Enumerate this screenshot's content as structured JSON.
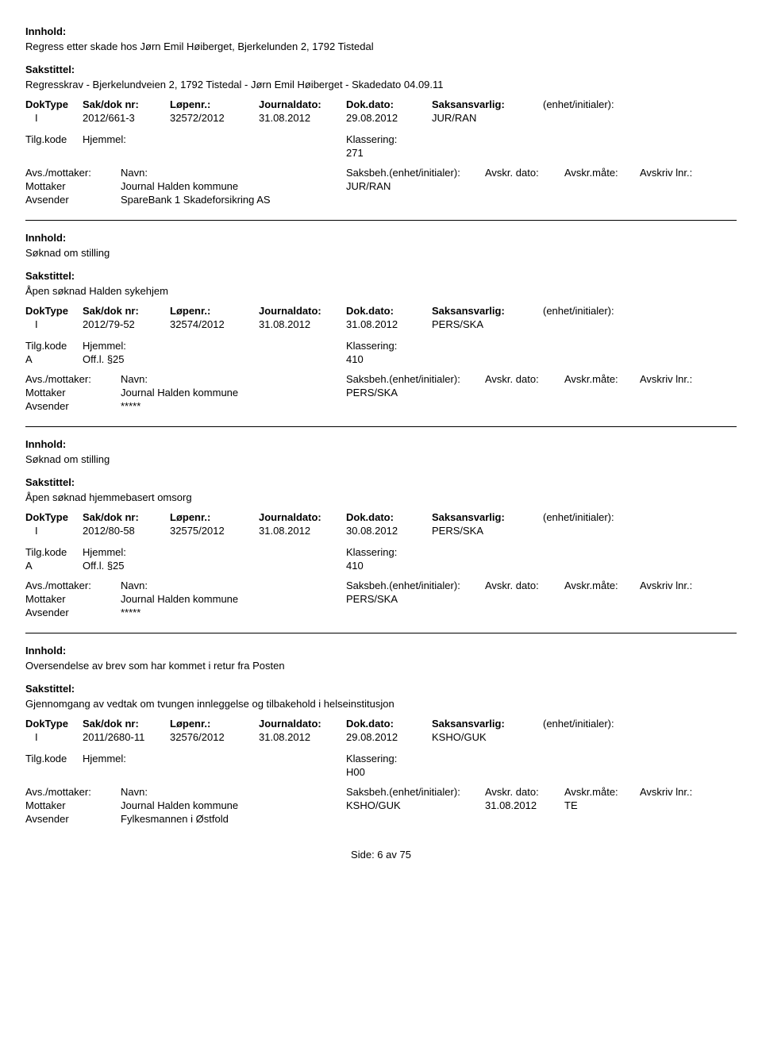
{
  "labels": {
    "innhold": "Innhold:",
    "sakstittel": "Sakstittel:",
    "doktype": "DokType",
    "sakdok": "Sak/dok nr:",
    "lopenr": "Løpenr.:",
    "jdato": "Journaldato:",
    "ddato": "Dok.dato:",
    "saksansv": "Saksansvarlig:",
    "enhet": "(enhet/initialer):",
    "tilgkode": "Tilg.kode",
    "hjemmel": "Hjemmel:",
    "klass": "Klassering:",
    "avsmot": "Avs./mottaker:",
    "navn": "Navn:",
    "saksbeh": "Saksbeh.(enhet/initialer):",
    "avskrdato": "Avskr. dato:",
    "avskrmate": "Avskr.måte:",
    "avskrlnr": "Avskriv lnr.:",
    "mottaker": "Mottaker",
    "avsender": "Avsender"
  },
  "records": [
    {
      "innhold": "Regress etter skade hos Jørn Emil Høiberget, Bjerkelunden 2, 1792 Tistedal",
      "sakstittel": "Regresskrav - Bjerkelundveien 2, 1792 Tistedal - Jørn Emil Høiberget - Skadedato 04.09.11",
      "doktype": "I",
      "sakdok": "2012/661-3",
      "lopenr": "32572/2012",
      "jdato": "31.08.2012",
      "ddato": "29.08.2012",
      "saksansv": "JUR/RAN",
      "tilgkode": "",
      "hjemmel": "",
      "klass": "271",
      "parties": [
        {
          "role": "Mottaker",
          "name": "Journal Halden kommune",
          "saksbeh": "JUR/RAN",
          "date": "",
          "mate": ""
        },
        {
          "role": "Avsender",
          "name": "SpareBank 1 Skadeforsikring AS",
          "saksbeh": "",
          "date": "",
          "mate": ""
        }
      ]
    },
    {
      "innhold": "Søknad om stilling",
      "sakstittel": "Åpen søknad Halden sykehjem",
      "doktype": "I",
      "sakdok": "2012/79-52",
      "lopenr": "32574/2012",
      "jdato": "31.08.2012",
      "ddato": "31.08.2012",
      "saksansv": "PERS/SKA",
      "tilgkode": "A",
      "hjemmel": "Off.l. §25",
      "klass": "410",
      "parties": [
        {
          "role": "Mottaker",
          "name": "Journal Halden kommune",
          "saksbeh": "PERS/SKA",
          "date": "",
          "mate": ""
        },
        {
          "role": "Avsender",
          "name": "*****",
          "saksbeh": "",
          "date": "",
          "mate": ""
        }
      ]
    },
    {
      "innhold": "Søknad om stilling",
      "sakstittel": "Åpen søknad hjemmebasert omsorg",
      "doktype": "I",
      "sakdok": "2012/80-58",
      "lopenr": "32575/2012",
      "jdato": "31.08.2012",
      "ddato": "30.08.2012",
      "saksansv": "PERS/SKA",
      "tilgkode": "A",
      "hjemmel": "Off.l. §25",
      "klass": "410",
      "parties": [
        {
          "role": "Mottaker",
          "name": "Journal Halden kommune",
          "saksbeh": "PERS/SKA",
          "date": "",
          "mate": ""
        },
        {
          "role": "Avsender",
          "name": "*****",
          "saksbeh": "",
          "date": "",
          "mate": ""
        }
      ]
    },
    {
      "innhold": "Oversendelse av brev som har kommet i retur fra Posten",
      "sakstittel": "Gjennomgang av vedtak om tvungen innleggelse og tilbakehold i helseinstitusjon",
      "doktype": "I",
      "sakdok": "2011/2680-11",
      "lopenr": "32576/2012",
      "jdato": "31.08.2012",
      "ddato": "29.08.2012",
      "saksansv": "KSHO/GUK",
      "tilgkode": "",
      "hjemmel": "",
      "klass": "H00",
      "parties": [
        {
          "role": "Mottaker",
          "name": "Journal Halden kommune",
          "saksbeh": "KSHO/GUK",
          "date": "31.08.2012",
          "mate": "TE"
        },
        {
          "role": "Avsender",
          "name": "Fylkesmannen i Østfold",
          "saksbeh": "",
          "date": "",
          "mate": ""
        }
      ]
    }
  ],
  "footer": "Side: 6 av 75"
}
